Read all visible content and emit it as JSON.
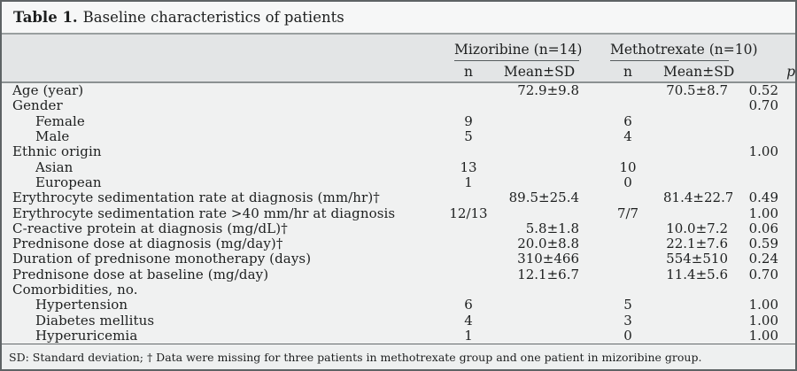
{
  "title": {
    "label": "Table 1.",
    "text": "Baseline characteristics of patients"
  },
  "header": {
    "group1": "Mizoribine (n=14)",
    "group2": "Methotrexate (n=10)",
    "sub_n1": "n",
    "sub_mean1": "Mean±SD",
    "sub_n2": "n",
    "sub_mean2": "Mean±SD",
    "p": "p"
  },
  "rows": [
    {
      "label": "Age (year)",
      "n1": "",
      "mean1": "72.9±9.8",
      "n2": "",
      "mean2": "70.5±8.7",
      "p": "0.52"
    },
    {
      "label": "Gender",
      "n1": "",
      "mean1": "",
      "n2": "",
      "mean2": "",
      "p": "0.70"
    },
    {
      "label": "Female",
      "n1": "9",
      "mean1": "",
      "n2": "6",
      "mean2": "",
      "p": ""
    },
    {
      "label": "Male",
      "n1": "5",
      "mean1": "",
      "n2": "4",
      "mean2": "",
      "p": ""
    },
    {
      "label": "Ethnic origin",
      "n1": "",
      "mean1": "",
      "n2": "",
      "mean2": "",
      "p": "1.00"
    },
    {
      "label": "Asian",
      "n1": "13",
      "mean1": "",
      "n2": "10",
      "mean2": "",
      "p": ""
    },
    {
      "label": "European",
      "n1": "1",
      "mean1": "",
      "n2": "0",
      "mean2": "",
      "p": ""
    },
    {
      "label": "Erythrocyte sedimentation rate at diagnosis (mm/hr)†",
      "n1": "",
      "mean1": "89.5±25.4",
      "n2": "",
      "mean2": "81.4±22.7",
      "p": "0.49"
    },
    {
      "label": "Erythrocyte sedimentation rate >40 mm/hr at diagnosis",
      "n1": "12/13",
      "mean1": "",
      "n2": "7/7",
      "mean2": "",
      "p": "1.00"
    },
    {
      "label": "C-reactive protein at diagnosis (mg/dL)†",
      "n1": "",
      "mean1": "5.8±1.8",
      "n2": "",
      "mean2": "10.0±7.2",
      "p": "0.06"
    },
    {
      "label": "Prednisone dose at diagnosis (mg/day)†",
      "n1": "",
      "mean1": "20.0±8.8",
      "n2": "",
      "mean2": "22.1±7.6",
      "p": "0.59"
    },
    {
      "label": "Duration of prednisone monotherapy (days)",
      "n1": "",
      "mean1": "310±466",
      "n2": "",
      "mean2": "554±510",
      "p": "0.24"
    },
    {
      "label": "Prednisone dose at baseline (mg/day)",
      "n1": "",
      "mean1": "12.1±6.7",
      "n2": "",
      "mean2": "11.4±5.6",
      "p": "0.70"
    },
    {
      "label": "Comorbidities, no.",
      "n1": "",
      "mean1": "",
      "n2": "",
      "mean2": "",
      "p": ""
    },
    {
      "label": "Hypertension",
      "n1": "6",
      "mean1": "",
      "n2": "5",
      "mean2": "",
      "p": "1.00"
    },
    {
      "label": "Diabetes mellitus",
      "n1": "4",
      "mean1": "",
      "n2": "3",
      "mean2": "",
      "p": "1.00"
    },
    {
      "label": "Hyperuricemia",
      "n1": "1",
      "mean1": "",
      "n2": "0",
      "mean2": "",
      "p": "1.00"
    }
  ],
  "footnote": "SD: Standard deviation; † Data were missing for three patients in methotrexate group and one patient in mizoribine group.",
  "colors": {
    "header_band": "#e3e5e6",
    "body_background": "#f0f1f1",
    "title_background": "#f6f7f7",
    "outer_border": "#5e6365",
    "text": "#1d1f1f"
  }
}
